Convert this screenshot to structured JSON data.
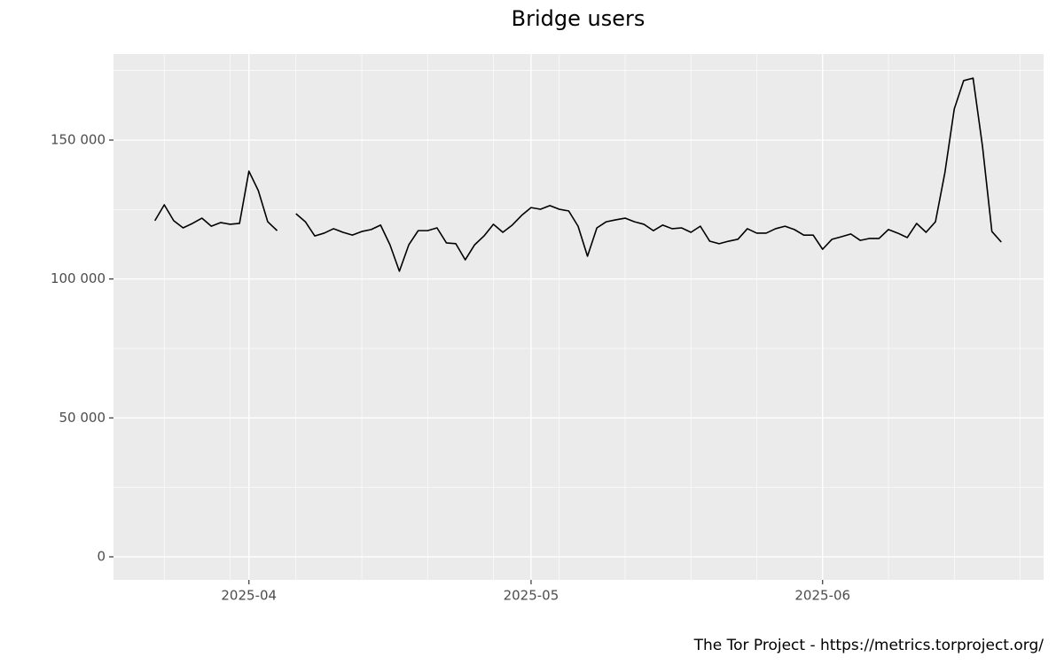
{
  "chart_data": {
    "type": "line",
    "title": "Bridge users",
    "caption": "The Tor Project - https://metrics.torproject.org/",
    "x": [
      81,
      82,
      83,
      84,
      85,
      86,
      87,
      88,
      89,
      90,
      91,
      92,
      93,
      94,
      95,
      96,
      97,
      98,
      99,
      100,
      101,
      102,
      103,
      104,
      105,
      106,
      107,
      108,
      109,
      110,
      111,
      112,
      113,
      114,
      115,
      116,
      117,
      118,
      119,
      120,
      121,
      122,
      123,
      124,
      125,
      126,
      127,
      128,
      129,
      130,
      131,
      132,
      133,
      134,
      135,
      136,
      137,
      138,
      139,
      140,
      141,
      142,
      143,
      144,
      145,
      146,
      147,
      148,
      149,
      150,
      151,
      152,
      153,
      154,
      155,
      156,
      157,
      158,
      159,
      160,
      161,
      162,
      163,
      164,
      165,
      166,
      167,
      168,
      169,
      170,
      171
    ],
    "series": [
      {
        "color": "#000000",
        "values": [
          121000,
          126700,
          121000,
          118400,
          120000,
          121900,
          119000,
          120300,
          119700,
          120000,
          138800,
          131800,
          120600,
          117400,
          null,
          123500,
          120600,
          115500,
          116500,
          118100,
          116800,
          115800,
          117100,
          117800,
          119400,
          112300,
          102800,
          112300,
          117400,
          117400,
          118400,
          113000,
          112700,
          106900,
          112300,
          115500,
          119700,
          116800,
          119400,
          122900,
          125700,
          125100,
          126400,
          125100,
          124500,
          119000,
          108200,
          118400,
          120600,
          121300,
          121900,
          120600,
          119700,
          117400,
          119400,
          118100,
          118400,
          116800,
          119000,
          113600,
          112700,
          113600,
          114300,
          118100,
          116500,
          116500,
          118100,
          119000,
          117800,
          115800,
          115800,
          110700,
          114300,
          115200,
          116200,
          113900,
          114600,
          114600,
          117800,
          116500,
          114900,
          120000,
          116800,
          120600,
          138200,
          161200,
          171400,
          172300,
          147800,
          117100,
          113300
        ]
      }
    ],
    "xlim": [
      76.6,
      175.5
    ],
    "xticks": [
      {
        "value": 91,
        "label": "2025-04"
      },
      {
        "value": 121,
        "label": "2025-05"
      },
      {
        "value": 152,
        "label": "2025-06"
      }
    ],
    "x_minor_grid": [
      82,
      89,
      96,
      103,
      110,
      117,
      124,
      131,
      138,
      145,
      159,
      166,
      173
    ],
    "ylim": [
      -8300,
      180950
    ],
    "yticks": [
      0,
      {
        "value": 50000,
        "label": "50 000"
      },
      {
        "value": 100000,
        "label": "100 000"
      },
      {
        "value": 150000,
        "label": "150 000"
      }
    ],
    "y_minor_grid": [
      25000,
      75000,
      125000,
      175000
    ],
    "grid": true
  }
}
